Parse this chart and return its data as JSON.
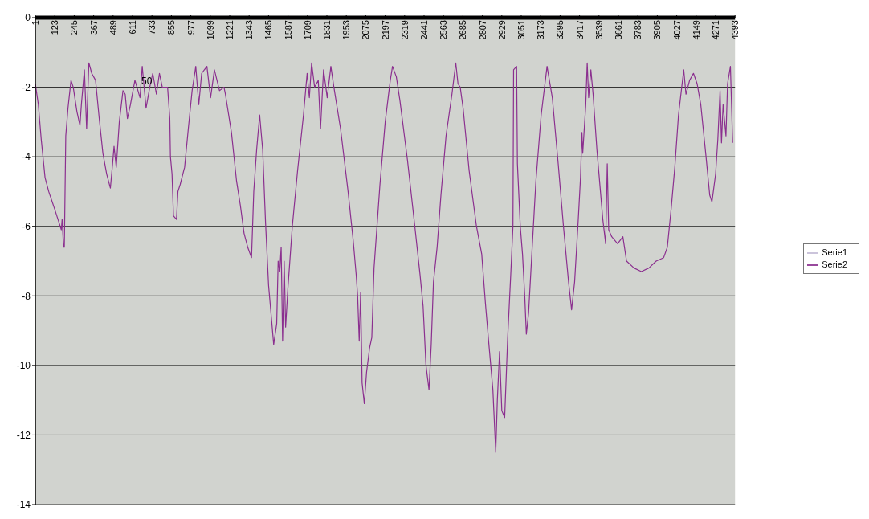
{
  "chart_data": {
    "type": "line",
    "x": [
      1,
      20,
      38,
      62,
      85,
      122,
      150,
      164,
      169,
      178,
      183,
      192,
      206,
      225,
      239,
      262,
      281,
      290,
      309,
      323,
      337,
      355,
      379,
      402,
      425,
      449,
      472,
      486,
      495,
      509,
      528,
      551,
      565,
      579,
      598,
      626,
      658,
      672,
      696,
      719,
      738,
      761,
      780,
      798,
      831,
      845,
      849,
      859,
      868,
      887,
      896,
      910,
      938,
      961,
      985,
      1008,
      1027,
      1045,
      1078,
      1101,
      1125,
      1157,
      1185,
      1194,
      1232,
      1264,
      1288,
      1311,
      1334,
      1358,
      1372,
      1390,
      1409,
      1428,
      1446,
      1465,
      1484,
      1497,
      1516,
      1525,
      1535,
      1544,
      1553,
      1563,
      1572,
      1586,
      1614,
      1647,
      1684,
      1707,
      1721,
      1735,
      1754,
      1777,
      1791,
      1810,
      1833,
      1856,
      1875,
      1917,
      1964,
      1996,
      2015,
      2024,
      2034,
      2043,
      2052,
      2066,
      2080,
      2099,
      2113,
      2127,
      2164,
      2197,
      2229,
      2243,
      2267,
      2290,
      2337,
      2383,
      2416,
      2435,
      2453,
      2472,
      2486,
      2500,
      2523,
      2547,
      2579,
      2616,
      2640,
      2654,
      2668,
      2686,
      2724,
      2770,
      2803,
      2826,
      2850,
      2873,
      2891,
      2901,
      2915,
      2929,
      2947,
      2966,
      2985,
      2999,
      3003,
      3022,
      3027,
      3045,
      3059,
      3073,
      3083,
      3097,
      3115,
      3143,
      3176,
      3213,
      3246,
      3283,
      3316,
      3348,
      3367,
      3386,
      3409,
      3423,
      3432,
      3437,
      3456,
      3465,
      3474,
      3488,
      3502,
      3526,
      3563,
      3581,
      3591,
      3600,
      3619,
      3656,
      3689,
      3712,
      3759,
      3805,
      3852,
      3898,
      3945,
      3968,
      3992,
      4015,
      4038,
      4071,
      4085,
      4108,
      4132,
      4155,
      4178,
      4211,
      4234,
      4248,
      4271,
      4285,
      4299,
      4308,
      4318,
      4336,
      4346,
      4364,
      4378
    ],
    "series": [
      {
        "name": "Serie1",
        "color": "#c4bcd6",
        "values": [
          null,
          null,
          null,
          null,
          null,
          null,
          null,
          null,
          null,
          null,
          null,
          null,
          null,
          null,
          null,
          null,
          null,
          null,
          null,
          null,
          null,
          null,
          null,
          null,
          null,
          null,
          null,
          null,
          null,
          null,
          null,
          null,
          null,
          null,
          null,
          null,
          null,
          null,
          null,
          null,
          null,
          null,
          null,
          null,
          null,
          null,
          null,
          null,
          null,
          null,
          null,
          null,
          null,
          null,
          null,
          null,
          null,
          null,
          null,
          null,
          null,
          null,
          null,
          null,
          null,
          null,
          null,
          null,
          null,
          null,
          null,
          null,
          null,
          null,
          null,
          null,
          null,
          null,
          null,
          null,
          null,
          null,
          null,
          null,
          null,
          null,
          null,
          null,
          null,
          null,
          null,
          null,
          null,
          null,
          null,
          null,
          null,
          null,
          null,
          null,
          null,
          null,
          null,
          null,
          null,
          null,
          null,
          null,
          null,
          null,
          null,
          null,
          null,
          null,
          null,
          null,
          null,
          null,
          null,
          null,
          null,
          null,
          null,
          null,
          null,
          null,
          null,
          null,
          null,
          null,
          null,
          null,
          null,
          null,
          null,
          null,
          null,
          null,
          null,
          null,
          null,
          null,
          null,
          null,
          null,
          null,
          null,
          null,
          null,
          null,
          null,
          null,
          null,
          null,
          null,
          null,
          null,
          null,
          null,
          null,
          null,
          null,
          null,
          null,
          null,
          null,
          null,
          null,
          null,
          null,
          null,
          null,
          null,
          null,
          null,
          null,
          null,
          null,
          null,
          null,
          null,
          null,
          null,
          null,
          null,
          null,
          null,
          null,
          null,
          null,
          null,
          null,
          null,
          null,
          null,
          null,
          null,
          null,
          null,
          null,
          null,
          null,
          null,
          null,
          null,
          null,
          null,
          null,
          null,
          null,
          null
        ]
      },
      {
        "name": "Serie2",
        "color": "#8b2f8f",
        "values": [
          -1.9,
          -2.5,
          -3.5,
          -4.6,
          -5.0,
          -5.5,
          -5.9,
          -6.1,
          -5.8,
          -6.6,
          -6.6,
          -3.4,
          -2.6,
          -1.8,
          -2.0,
          -2.7,
          -3.1,
          -2.5,
          -1.5,
          -3.2,
          -1.3,
          -1.6,
          -1.8,
          -2.9,
          -3.9,
          -4.5,
          -4.9,
          -4.2,
          -3.7,
          -4.3,
          -3.0,
          -2.1,
          -2.2,
          -2.9,
          -2.5,
          -1.8,
          -2.3,
          -1.4,
          -2.6,
          -2.0,
          -1.6,
          -2.2,
          -1.6,
          -2.0,
          -2.0,
          -2.9,
          -4.0,
          -4.5,
          -5.7,
          -5.8,
          -5.0,
          -4.8,
          -4.3,
          -3.2,
          -2.1,
          -1.4,
          -2.5,
          -1.6,
          -1.4,
          -2.3,
          -1.5,
          -2.1,
          -2.0,
          -2.2,
          -3.3,
          -4.7,
          -5.4,
          -6.2,
          -6.6,
          -6.9,
          -5.0,
          -3.8,
          -2.8,
          -3.8,
          -5.9,
          -7.7,
          -8.7,
          -9.4,
          -8.8,
          -7.0,
          -7.3,
          -6.6,
          -9.3,
          -7.0,
          -8.9,
          -7.8,
          -6.0,
          -4.4,
          -2.8,
          -1.6,
          -2.3,
          -1.3,
          -2.0,
          -1.8,
          -3.2,
          -1.5,
          -2.3,
          -1.4,
          -2.0,
          -3.2,
          -5.0,
          -6.4,
          -7.4,
          -8.0,
          -9.3,
          -7.9,
          -10.5,
          -11.1,
          -10.2,
          -9.5,
          -9.2,
          -7.2,
          -4.8,
          -3.0,
          -1.8,
          -1.4,
          -1.7,
          -2.4,
          -4.1,
          -6.0,
          -7.4,
          -8.3,
          -10.0,
          -10.7,
          -9.4,
          -7.6,
          -6.6,
          -5.1,
          -3.4,
          -2.2,
          -1.3,
          -1.9,
          -2.0,
          -2.6,
          -4.4,
          -6.0,
          -6.8,
          -8.2,
          -9.5,
          -10.7,
          -12.5,
          -11.0,
          -9.6,
          -11.3,
          -11.5,
          -9.2,
          -7.4,
          -6.0,
          -1.5,
          -1.4,
          -4.2,
          -6.0,
          -6.8,
          -8.0,
          -9.1,
          -8.5,
          -7.0,
          -4.7,
          -2.8,
          -1.4,
          -2.3,
          -4.2,
          -6.0,
          -7.6,
          -8.4,
          -7.6,
          -5.8,
          -4.6,
          -3.3,
          -3.9,
          -2.5,
          -1.3,
          -2.3,
          -1.5,
          -2.2,
          -3.8,
          -5.8,
          -6.5,
          -4.2,
          -6.1,
          -6.3,
          -6.5,
          -6.3,
          -7.0,
          -7.2,
          -7.3,
          -7.2,
          -7.0,
          -6.9,
          -6.6,
          -5.5,
          -4.3,
          -2.8,
          -1.5,
          -2.2,
          -1.8,
          -1.6,
          -1.9,
          -2.5,
          -4.0,
          -5.1,
          -5.3,
          -4.5,
          -3.5,
          -2.1,
          -3.6,
          -2.5,
          -3.4,
          -1.9,
          -1.4,
          -3.6
        ]
      }
    ],
    "xlim": [
      1,
      4393
    ],
    "xticks": [
      1,
      123,
      245,
      367,
      489,
      611,
      733,
      855,
      977,
      1099,
      1221,
      1343,
      1465,
      1587,
      1709,
      1831,
      1953,
      2075,
      2197,
      2319,
      2441,
      2563,
      2685,
      2807,
      2929,
      3051,
      3173,
      3295,
      3417,
      3539,
      3661,
      3783,
      3905,
      4027,
      4149,
      4271,
      4393
    ],
    "ylim": [
      -14,
      0
    ],
    "yticks": [
      0,
      -2,
      -4,
      -6,
      -8,
      -10,
      -12,
      -14
    ],
    "grid": "y",
    "legend": "right",
    "marker": "none",
    "line_style": "solid",
    "annotations": [
      "50"
    ]
  }
}
